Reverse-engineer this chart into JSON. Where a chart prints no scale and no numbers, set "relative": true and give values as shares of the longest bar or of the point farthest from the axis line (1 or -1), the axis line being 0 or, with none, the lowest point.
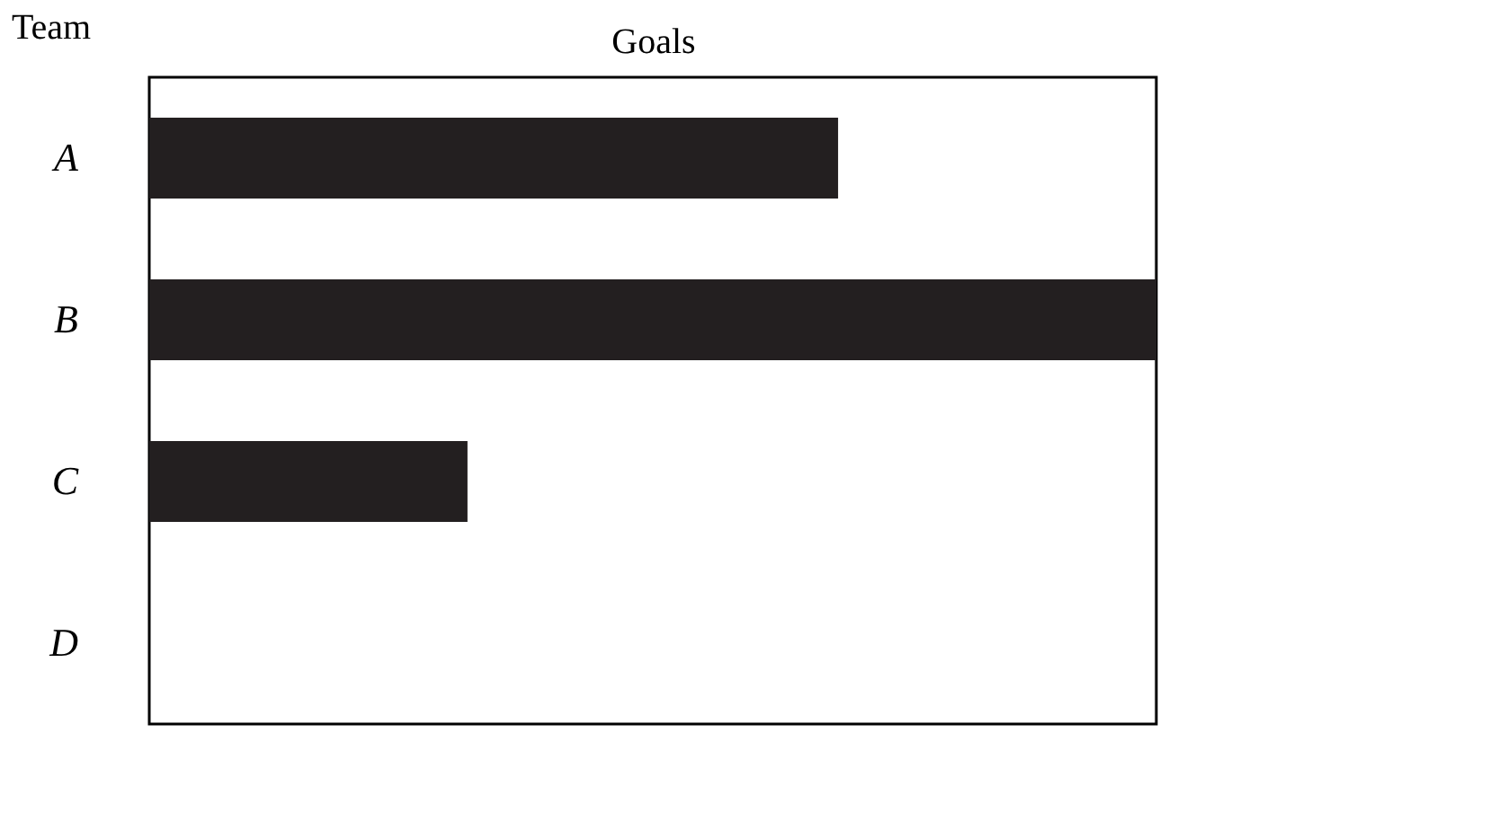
{
  "chart_data": {
    "type": "bar",
    "orientation": "horizontal",
    "relative": true,
    "xlabel": "Goals",
    "ylabel": "Team",
    "categories": [
      "A",
      "B",
      "C",
      "D"
    ],
    "values": [
      0.684,
      1,
      0.316,
      null
    ],
    "color": "#231f20"
  }
}
